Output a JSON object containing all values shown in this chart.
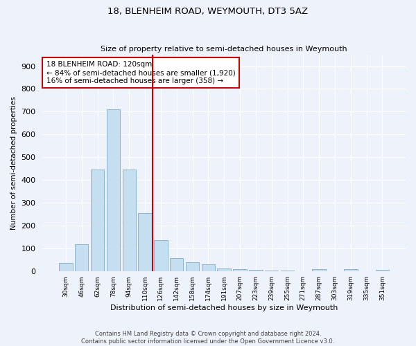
{
  "title1": "18, BLENHEIM ROAD, WEYMOUTH, DT3 5AZ",
  "title2": "Size of property relative to semi-detached houses in Weymouth",
  "xlabel": "Distribution of semi-detached houses by size in Weymouth",
  "ylabel": "Number of semi-detached properties",
  "bar_labels": [
    "30sqm",
    "46sqm",
    "62sqm",
    "78sqm",
    "94sqm",
    "110sqm",
    "126sqm",
    "142sqm",
    "158sqm",
    "174sqm",
    "191sqm",
    "207sqm",
    "223sqm",
    "239sqm",
    "255sqm",
    "271sqm",
    "287sqm",
    "303sqm",
    "319sqm",
    "335sqm",
    "351sqm"
  ],
  "bar_values": [
    35,
    118,
    447,
    710,
    447,
    255,
    135,
    57,
    38,
    30,
    13,
    8,
    5,
    3,
    2,
    0,
    8,
    0,
    8,
    0,
    6
  ],
  "bar_color": "#c5dff0",
  "bar_edge_color": "#8ab4d0",
  "property_line_x": 5.5,
  "annotation_line1": "18 BLENHEIM ROAD: 120sqm",
  "annotation_line2": "← 84% of semi-detached houses are smaller (1,920)",
  "annotation_line3": "16% of semi-detached houses are larger (358) →",
  "vline_color": "#cc0000",
  "annotation_box_edgecolor": "#cc0000",
  "ylim": [
    0,
    950
  ],
  "yticks": [
    0,
    100,
    200,
    300,
    400,
    500,
    600,
    700,
    800,
    900
  ],
  "footer_line1": "Contains HM Land Registry data © Crown copyright and database right 2024.",
  "footer_line2": "Contains public sector information licensed under the Open Government Licence v3.0.",
  "bg_color": "#eef2fa",
  "grid_color": "#ffffff"
}
